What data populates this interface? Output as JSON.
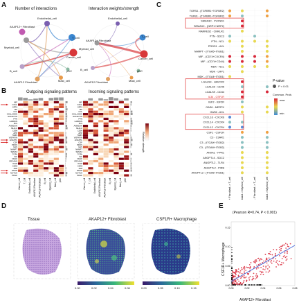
{
  "panels": {
    "A": {
      "letter": "A",
      "left_title": "Number of interactions",
      "right_title": "Interaction weights/strength",
      "nodes": [
        "Endothelial_cell",
        "T_cell",
        "Cancer_cell",
        "pDC",
        "Mast_cell",
        "AKAP12 Fibroblast",
        "B_cell",
        "Myeloid_cell",
        "AKAP12+ Fibroblast"
      ],
      "node_colors": [
        "#7a5fb0",
        "#3a86d0",
        "#d8383a",
        "#88b8a0",
        "#e89a4a",
        "#c05ab0",
        "#b8a0c8",
        "#9a9a9a",
        "#e0a060"
      ]
    },
    "B": {
      "letter": "B",
      "outgoing_title": "Outgoing signaling patterns",
      "incoming_title": "Incoming signaling patterns",
      "legend_label": "Relative strength",
      "row_labels": [
        "MIF",
        "CXCL",
        "SPP1",
        "MK",
        "CCL",
        "COLLAGEN",
        "GALECTIN",
        "PTN",
        "LAMININ",
        "FN1",
        "ANNEXIN",
        "MHC-II",
        "CD99",
        "APP",
        "THBS",
        "VISFATIN",
        "ANGPTL",
        "CSF",
        "PROS",
        "GAS",
        "NAMPT",
        "SEMA3",
        "TGFb",
        "IGF",
        "VEGF",
        "PECAM1",
        "ICAM",
        "CD45",
        "JAM",
        "ESAM",
        "NOTCH",
        "PDGF"
      ],
      "col_labels": [
        "Cancer_cell",
        "T_cell",
        "Endothelial_cell",
        "AKAP12-Fibroblast",
        "AKAP12+Fibroblast",
        "B_cell",
        "Myeloid_cell",
        "Mast_cell",
        "pDC"
      ]
    },
    "C": {
      "letter": "C",
      "legend_title": "P-value",
      "legend_p": "P < 0.01",
      "legend_prob": "Commun. Prob.",
      "legend_max": "max",
      "legend_min": "min",
      "rows": [
        "TGFB3 - (TGFBR1+TGFBR2)",
        "TGFB1 - (TGFBR1+TGFBR2)",
        "SEMA3C - PLXND1",
        "SEMA3C - (NRP1+NRP2)",
        "RARRES2 - CMKLR1",
        "PTN - SDC3",
        "PTN - NCL",
        "PROS1 - AXL",
        "NAMPT - (ITGA5+ITGB1)",
        "MIF - (CD74+CXCR4)",
        "MIF - (CD74+CD44)",
        "MDK - NCL",
        "MDK - LRP1",
        "MDK - (ITGA4+ITGB1)",
        "LGALS9 - HAVCR2",
        "LGALS9 - CD45",
        "LGALS9 - CD44",
        "IL34 - CSF1R",
        "IGF2 - IGF2R",
        "GAS6 - MERTK",
        "GAS6 - AXL",
        "CXCL16 - CXCR6",
        "CXCL14 - CXCR4",
        "CXCL12 - CXCR4",
        "CSF1 - CSF1R",
        "C3 - C3AR1",
        "C3 - (ITGAX+ITGB2)",
        "C3 - (ITGAM+ITGB2)",
        "ANXA1 - FPR1",
        "ANGPTL4 - SDC2",
        "ANGPTL2 - TLR4",
        "ANGPTL2 - PIRB",
        "ANGPTL2 - (ITGA5+ITGB1)"
      ],
      "cols": [
        "AKAP12+ Fibroblast -> T_cell",
        "AKAP12+ Fibroblast -> Myeloid_cell",
        "AKAP12- Fibroblast -> T_cell",
        "AKAP12- Fibroblast -> Myeloid_cell"
      ]
    },
    "D": {
      "letter": "D",
      "titles": [
        "Tissue",
        "AKAP12+ Fibroblast",
        "CSF1R+ Macrophage"
      ],
      "scale1_ticks": [
        "0.00",
        "0.02",
        "0.04",
        "0.06"
      ],
      "scale2_ticks": [
        "0.00",
        "0.05",
        "0.10",
        "0.15"
      ]
    },
    "E": {
      "letter": "E",
      "title": "(Pearson R=0.74, P < 0.001)",
      "xlabel": "AKAP12+ Fibroblast",
      "ylabel": "CSF1R+ Macrophage",
      "xticks": [
        "0.00",
        "0.02",
        "0.04",
        "0.06",
        "0.08"
      ],
      "yticks": [
        "0.00",
        "0.05",
        "0.10",
        "0.15"
      ]
    }
  },
  "colors": {
    "dot_high": "#d8283a",
    "dot_mid": "#e8d850",
    "dot_low": "#3a5ad8",
    "heat_dark": "#7a0010",
    "heat_mid": "#d85a3a",
    "heat_light": "#f8d8b8",
    "highlight_box": "#e03030",
    "arrow_red": "#d82020"
  }
}
